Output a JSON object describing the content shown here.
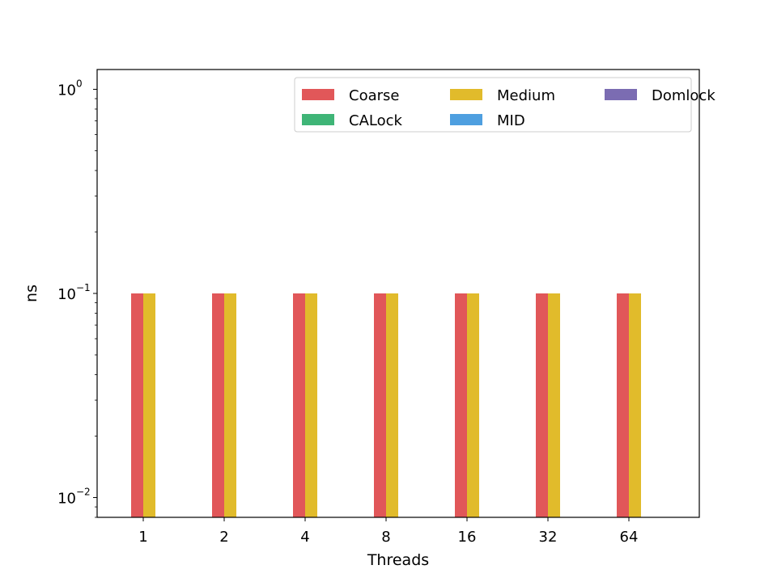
{
  "chart_data": {
    "type": "bar",
    "xlabel": "Threads",
    "ylabel": "ns",
    "yscale": "log",
    "ylim": [
      0.008,
      1.25
    ],
    "grid": false,
    "legend_position": "top-right",
    "categories": [
      "1",
      "2",
      "4",
      "8",
      "16",
      "32",
      "64"
    ],
    "y_ticks": [
      {
        "value": 0.01,
        "base": "10",
        "exp": "−2"
      },
      {
        "value": 0.1,
        "base": "10",
        "exp": "−1"
      },
      {
        "value": 1,
        "base": "10",
        "exp": "0"
      }
    ],
    "series": [
      {
        "name": "Coarse",
        "color": "#e15759",
        "values": [
          0.1,
          0.1,
          0.1,
          0.1,
          0.1,
          0.1,
          0.1
        ]
      },
      {
        "name": "Medium",
        "color": "#e1bb2b",
        "values": [
          0.1,
          0.1,
          0.1,
          0.1,
          0.1,
          0.1,
          0.1
        ]
      },
      {
        "name": "Domlock",
        "color": "#7b6cb2",
        "values": [
          null,
          null,
          null,
          null,
          null,
          null,
          null
        ]
      },
      {
        "name": "CALock",
        "color": "#3fb577",
        "values": [
          null,
          null,
          null,
          null,
          null,
          null,
          null
        ]
      },
      {
        "name": "MID",
        "color": "#4e9fe0",
        "values": [
          null,
          null,
          null,
          null,
          null,
          null,
          null
        ]
      }
    ]
  }
}
